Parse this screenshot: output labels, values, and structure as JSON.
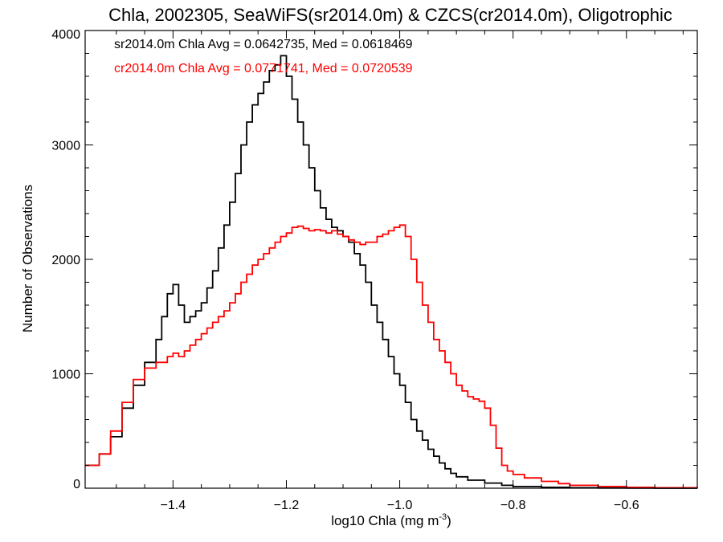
{
  "chart_data": {
    "type": "line",
    "title": "Chla, 2002305, SeaWiFS(sr2014.0m) & CZCS(cr2014.0m), Oligotrophic",
    "xlabel": "log10 Chla (mg m",
    "xlabel_sup": "-3",
    "xlabel_close": ")",
    "ylabel": "Number of Observations",
    "xlim": [
      -1.555,
      -0.475
    ],
    "ylim": [
      0,
      4000
    ],
    "xticks": [
      -1.4,
      -1.2,
      -1.0,
      -0.8,
      -0.6
    ],
    "xtick_labels": [
      "−1.4",
      "−1.2",
      "−1.0",
      "−0.8",
      "−0.6"
    ],
    "yticks": [
      0,
      1000,
      2000,
      3000,
      4000
    ],
    "ytick_labels": [
      "0",
      "1000",
      "2000",
      "3000",
      "4000"
    ],
    "grid": false,
    "annotations": [
      "sr2014.0m Chla Avg = 0.0642735, Med = 0.0618469",
      "cr2014.0m Chla Avg = 0.0771741, Med = 0.0720539"
    ],
    "series": [
      {
        "color": "#000000",
        "x": [
          -1.555,
          -1.53,
          -1.51,
          -1.49,
          -1.47,
          -1.45,
          -1.43,
          -1.42,
          -1.41,
          -1.4,
          -1.39,
          -1.38,
          -1.37,
          -1.36,
          -1.35,
          -1.34,
          -1.33,
          -1.32,
          -1.31,
          -1.3,
          -1.29,
          -1.28,
          -1.27,
          -1.26,
          -1.25,
          -1.24,
          -1.23,
          -1.22,
          -1.21,
          -1.2,
          -1.19,
          -1.18,
          -1.17,
          -1.16,
          -1.15,
          -1.14,
          -1.13,
          -1.12,
          -1.11,
          -1.1,
          -1.09,
          -1.08,
          -1.07,
          -1.06,
          -1.05,
          -1.04,
          -1.03,
          -1.02,
          -1.01,
          -1.0,
          -0.99,
          -0.98,
          -0.97,
          -0.96,
          -0.95,
          -0.94,
          -0.93,
          -0.92,
          -0.91,
          -0.9,
          -0.88,
          -0.85,
          -0.82,
          -0.8,
          -0.75,
          -0.7,
          -0.65,
          -0.6,
          -0.55,
          -0.475
        ],
        "y": [
          200,
          300,
          450,
          700,
          900,
          1100,
          1300,
          1500,
          1700,
          1780,
          1600,
          1450,
          1500,
          1550,
          1620,
          1750,
          1900,
          2100,
          2300,
          2500,
          2750,
          3000,
          3200,
          3350,
          3450,
          3550,
          3650,
          3700,
          3780,
          3600,
          3400,
          3200,
          3000,
          2800,
          2600,
          2450,
          2350,
          2280,
          2250,
          2200,
          2150,
          2050,
          1950,
          1800,
          1600,
          1450,
          1300,
          1150,
          1000,
          900,
          750,
          600,
          500,
          420,
          340,
          280,
          220,
          170,
          130,
          100,
          70,
          45,
          25,
          15,
          8,
          4,
          2,
          1,
          0,
          0
        ]
      },
      {
        "color": "#ff0000",
        "x": [
          -1.555,
          -1.53,
          -1.51,
          -1.49,
          -1.47,
          -1.45,
          -1.43,
          -1.41,
          -1.4,
          -1.39,
          -1.38,
          -1.37,
          -1.36,
          -1.35,
          -1.34,
          -1.33,
          -1.32,
          -1.31,
          -1.3,
          -1.29,
          -1.28,
          -1.27,
          -1.26,
          -1.25,
          -1.24,
          -1.23,
          -1.22,
          -1.21,
          -1.2,
          -1.19,
          -1.18,
          -1.17,
          -1.16,
          -1.15,
          -1.14,
          -1.13,
          -1.12,
          -1.11,
          -1.1,
          -1.09,
          -1.08,
          -1.07,
          -1.06,
          -1.05,
          -1.04,
          -1.03,
          -1.02,
          -1.01,
          -1.0,
          -0.99,
          -0.98,
          -0.97,
          -0.96,
          -0.95,
          -0.94,
          -0.93,
          -0.92,
          -0.91,
          -0.9,
          -0.89,
          -0.88,
          -0.87,
          -0.86,
          -0.85,
          -0.84,
          -0.83,
          -0.82,
          -0.81,
          -0.8,
          -0.78,
          -0.75,
          -0.72,
          -0.7,
          -0.65,
          -0.6,
          -0.55,
          -0.475
        ],
        "y": [
          200,
          300,
          500,
          750,
          950,
          1050,
          1100,
          1150,
          1180,
          1150,
          1200,
          1250,
          1300,
          1350,
          1400,
          1450,
          1500,
          1550,
          1620,
          1700,
          1800,
          1870,
          1950,
          2000,
          2050,
          2100,
          2150,
          2200,
          2230,
          2280,
          2290,
          2270,
          2250,
          2260,
          2250,
          2230,
          2250,
          2220,
          2200,
          2170,
          2150,
          2130,
          2150,
          2150,
          2200,
          2220,
          2250,
          2280,
          2300,
          2200,
          2000,
          1800,
          1600,
          1450,
          1300,
          1200,
          1100,
          1000,
          900,
          850,
          800,
          780,
          760,
          700,
          550,
          350,
          200,
          150,
          120,
          90,
          60,
          40,
          25,
          15,
          8,
          4,
          2
        ]
      }
    ]
  }
}
